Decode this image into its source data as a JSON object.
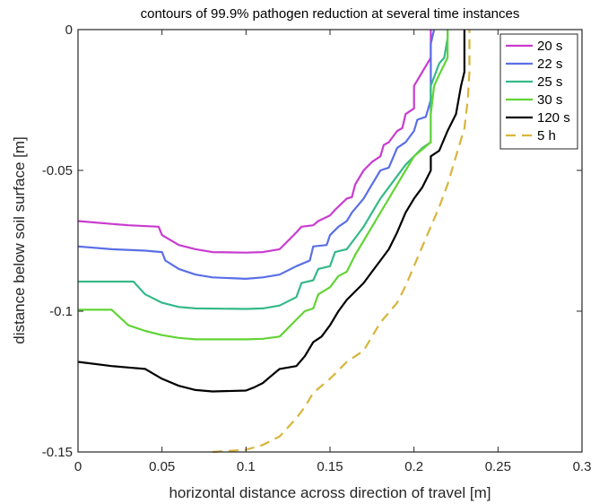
{
  "chart_data": {
    "type": "line",
    "title": "contours of 99.9% pathogen reduction at several time instances",
    "xlabel": "horizontal distance across direction of travel [m]",
    "ylabel": "distance below soil surface [m]",
    "xlim": [
      0,
      0.3
    ],
    "ylim": [
      -0.15,
      0
    ],
    "x_ticks": [
      0,
      0.05,
      0.1,
      0.15,
      0.2,
      0.25,
      0.3
    ],
    "x_tick_labels": [
      "0",
      "0.05",
      "0.1",
      "0.15",
      "0.2",
      "0.25",
      "0.3"
    ],
    "y_ticks": [
      0,
      -0.05,
      -0.1,
      -0.15
    ],
    "y_tick_labels": [
      "0",
      "-0.05",
      "-0.1",
      "-0.15"
    ],
    "grid": false,
    "legend_position": "top-right",
    "series": [
      {
        "name": "20 s",
        "color": "#c83ccf",
        "style": "solid",
        "points": [
          [
            0,
            -0.068
          ],
          [
            0.02,
            -0.069
          ],
          [
            0.03,
            -0.0695
          ],
          [
            0.048,
            -0.07
          ],
          [
            0.05,
            -0.073
          ],
          [
            0.06,
            -0.0765
          ],
          [
            0.07,
            -0.078
          ],
          [
            0.08,
            -0.079
          ],
          [
            0.1,
            -0.0792
          ],
          [
            0.11,
            -0.079
          ],
          [
            0.12,
            -0.078
          ],
          [
            0.125,
            -0.075
          ],
          [
            0.13,
            -0.072
          ],
          [
            0.133,
            -0.07
          ],
          [
            0.14,
            -0.0695
          ],
          [
            0.143,
            -0.068
          ],
          [
            0.15,
            -0.066
          ],
          [
            0.153,
            -0.064
          ],
          [
            0.16,
            -0.06
          ],
          [
            0.163,
            -0.0595
          ],
          [
            0.165,
            -0.055
          ],
          [
            0.17,
            -0.05
          ],
          [
            0.175,
            -0.047
          ],
          [
            0.18,
            -0.045
          ],
          [
            0.182,
            -0.041
          ],
          [
            0.185,
            -0.04
          ],
          [
            0.19,
            -0.036
          ],
          [
            0.193,
            -0.035
          ],
          [
            0.195,
            -0.03
          ],
          [
            0.2,
            -0.028
          ],
          [
            0.2,
            -0.02
          ],
          [
            0.205,
            -0.015
          ],
          [
            0.21,
            -0.01
          ],
          [
            0.21,
            0
          ]
        ]
      },
      {
        "name": "22 s",
        "color": "#5a6fe6",
        "style": "solid",
        "points": [
          [
            0,
            -0.077
          ],
          [
            0.02,
            -0.078
          ],
          [
            0.04,
            -0.0785
          ],
          [
            0.05,
            -0.079
          ],
          [
            0.052,
            -0.082
          ],
          [
            0.06,
            -0.085
          ],
          [
            0.07,
            -0.087
          ],
          [
            0.08,
            -0.088
          ],
          [
            0.1,
            -0.0885
          ],
          [
            0.11,
            -0.088
          ],
          [
            0.12,
            -0.087
          ],
          [
            0.13,
            -0.084
          ],
          [
            0.138,
            -0.082
          ],
          [
            0.14,
            -0.077
          ],
          [
            0.148,
            -0.0765
          ],
          [
            0.15,
            -0.073
          ],
          [
            0.155,
            -0.07
          ],
          [
            0.16,
            -0.068
          ],
          [
            0.163,
            -0.065
          ],
          [
            0.17,
            -0.06
          ],
          [
            0.175,
            -0.055
          ],
          [
            0.18,
            -0.05
          ],
          [
            0.185,
            -0.049
          ],
          [
            0.19,
            -0.042
          ],
          [
            0.195,
            -0.04
          ],
          [
            0.2,
            -0.036
          ],
          [
            0.202,
            -0.032
          ],
          [
            0.207,
            -0.031
          ],
          [
            0.21,
            -0.025
          ],
          [
            0.21,
            -0.015
          ],
          [
            0.21,
            -0.005
          ],
          [
            0.212,
            0
          ]
        ]
      },
      {
        "name": "25 s",
        "color": "#35b988",
        "style": "solid",
        "points": [
          [
            0,
            -0.0895
          ],
          [
            0.02,
            -0.0895
          ],
          [
            0.033,
            -0.0895
          ],
          [
            0.04,
            -0.094
          ],
          [
            0.05,
            -0.097
          ],
          [
            0.06,
            -0.0985
          ],
          [
            0.07,
            -0.099
          ],
          [
            0.1,
            -0.0992
          ],
          [
            0.11,
            -0.099
          ],
          [
            0.12,
            -0.098
          ],
          [
            0.13,
            -0.095
          ],
          [
            0.133,
            -0.09
          ],
          [
            0.14,
            -0.089
          ],
          [
            0.143,
            -0.085
          ],
          [
            0.15,
            -0.084
          ],
          [
            0.153,
            -0.079
          ],
          [
            0.16,
            -0.078
          ],
          [
            0.165,
            -0.074
          ],
          [
            0.17,
            -0.07
          ],
          [
            0.175,
            -0.065
          ],
          [
            0.18,
            -0.06
          ],
          [
            0.185,
            -0.056
          ],
          [
            0.19,
            -0.052
          ],
          [
            0.195,
            -0.048
          ],
          [
            0.2,
            -0.045
          ],
          [
            0.205,
            -0.042
          ],
          [
            0.21,
            -0.04
          ],
          [
            0.21,
            -0.03
          ],
          [
            0.21,
            -0.02
          ],
          [
            0.215,
            -0.012
          ],
          [
            0.218,
            -0.01
          ],
          [
            0.22,
            -0.003
          ],
          [
            0.22,
            0
          ]
        ]
      },
      {
        "name": "30 s",
        "color": "#62d436",
        "style": "solid",
        "points": [
          [
            0,
            -0.0995
          ],
          [
            0.01,
            -0.0995
          ],
          [
            0.02,
            -0.0995
          ],
          [
            0.03,
            -0.105
          ],
          [
            0.04,
            -0.107
          ],
          [
            0.05,
            -0.1085
          ],
          [
            0.06,
            -0.1095
          ],
          [
            0.07,
            -0.11
          ],
          [
            0.1,
            -0.11
          ],
          [
            0.11,
            -0.1098
          ],
          [
            0.12,
            -0.109
          ],
          [
            0.125,
            -0.106
          ],
          [
            0.13,
            -0.103
          ],
          [
            0.135,
            -0.1
          ],
          [
            0.14,
            -0.099
          ],
          [
            0.143,
            -0.094
          ],
          [
            0.15,
            -0.0915
          ],
          [
            0.155,
            -0.0875
          ],
          [
            0.16,
            -0.086
          ],
          [
            0.165,
            -0.08
          ],
          [
            0.17,
            -0.075
          ],
          [
            0.175,
            -0.07
          ],
          [
            0.18,
            -0.065
          ],
          [
            0.185,
            -0.06
          ],
          [
            0.19,
            -0.055
          ],
          [
            0.195,
            -0.05
          ],
          [
            0.2,
            -0.045
          ],
          [
            0.21,
            -0.04
          ],
          [
            0.21,
            -0.03
          ],
          [
            0.212,
            -0.02
          ],
          [
            0.215,
            -0.016
          ],
          [
            0.22,
            -0.01
          ],
          [
            0.22,
            0
          ]
        ]
      },
      {
        "name": "120 s",
        "color": "#000000",
        "style": "solid",
        "points": [
          [
            0,
            -0.118
          ],
          [
            0.02,
            -0.1195
          ],
          [
            0.03,
            -0.12
          ],
          [
            0.04,
            -0.1205
          ],
          [
            0.05,
            -0.124
          ],
          [
            0.06,
            -0.1265
          ],
          [
            0.07,
            -0.128
          ],
          [
            0.08,
            -0.1285
          ],
          [
            0.1,
            -0.1282
          ],
          [
            0.105,
            -0.127
          ],
          [
            0.11,
            -0.1255
          ],
          [
            0.115,
            -0.123
          ],
          [
            0.12,
            -0.1205
          ],
          [
            0.13,
            -0.1195
          ],
          [
            0.135,
            -0.116
          ],
          [
            0.14,
            -0.111
          ],
          [
            0.145,
            -0.109
          ],
          [
            0.15,
            -0.105
          ],
          [
            0.155,
            -0.1
          ],
          [
            0.16,
            -0.096
          ],
          [
            0.165,
            -0.093
          ],
          [
            0.17,
            -0.09
          ],
          [
            0.175,
            -0.086
          ],
          [
            0.18,
            -0.082
          ],
          [
            0.185,
            -0.078
          ],
          [
            0.19,
            -0.072
          ],
          [
            0.195,
            -0.065
          ],
          [
            0.2,
            -0.06
          ],
          [
            0.205,
            -0.056
          ],
          [
            0.21,
            -0.05
          ],
          [
            0.21,
            -0.045
          ],
          [
            0.215,
            -0.043
          ],
          [
            0.22,
            -0.036
          ],
          [
            0.225,
            -0.03
          ],
          [
            0.228,
            -0.02
          ],
          [
            0.23,
            -0.015
          ],
          [
            0.23,
            -0.005
          ],
          [
            0.23,
            0
          ]
        ]
      },
      {
        "name": "5 h",
        "color": "#d9b43b",
        "style": "dashed",
        "points": [
          [
            0.08,
            -0.15
          ],
          [
            0.1,
            -0.1492
          ],
          [
            0.11,
            -0.1475
          ],
          [
            0.12,
            -0.1445
          ],
          [
            0.13,
            -0.138
          ],
          [
            0.135,
            -0.134
          ],
          [
            0.14,
            -0.129
          ],
          [
            0.15,
            -0.124
          ],
          [
            0.16,
            -0.118
          ],
          [
            0.17,
            -0.114
          ],
          [
            0.175,
            -0.109
          ],
          [
            0.18,
            -0.104
          ],
          [
            0.19,
            -0.097
          ],
          [
            0.195,
            -0.091
          ],
          [
            0.2,
            -0.084
          ],
          [
            0.205,
            -0.077
          ],
          [
            0.21,
            -0.07
          ],
          [
            0.215,
            -0.063
          ],
          [
            0.22,
            -0.055
          ],
          [
            0.225,
            -0.045
          ],
          [
            0.23,
            -0.035
          ],
          [
            0.232,
            -0.025
          ],
          [
            0.233,
            -0.015
          ],
          [
            0.233,
            -0.005
          ],
          [
            0.233,
            0
          ]
        ]
      }
    ]
  }
}
